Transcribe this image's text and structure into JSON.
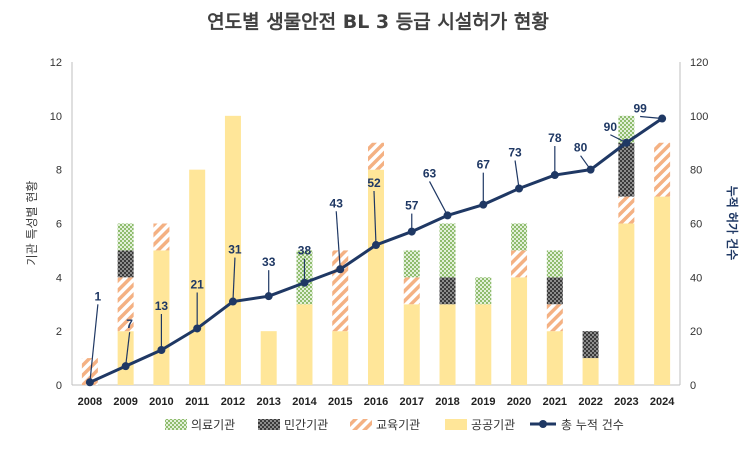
{
  "chart_data": {
    "type": "bar",
    "stacked": true,
    "title": "연도별 생물안전 BL 3 등급 시설허가 현황",
    "ylabel": "기관 특성별 현황",
    "y2label": "누적 허가 건수",
    "ylim": [
      0,
      12
    ],
    "y2lim": [
      0,
      120
    ],
    "yticks": [
      0,
      2,
      4,
      6,
      8,
      10,
      12
    ],
    "y2ticks": [
      0,
      20,
      40,
      60,
      80,
      100,
      120
    ],
    "categories": [
      "2008",
      "2009",
      "2010",
      "2011",
      "2012",
      "2013",
      "2014",
      "2015",
      "2016",
      "2017",
      "2018",
      "2019",
      "2020",
      "2021",
      "2022",
      "2023",
      "2024"
    ],
    "series": [
      {
        "name": "공공기관",
        "color": "#ffe699",
        "pattern": "solid",
        "values": [
          0,
          2,
          5,
          8,
          10,
          2,
          3,
          2,
          8,
          3,
          3,
          3,
          4,
          2,
          1,
          6,
          7
        ]
      },
      {
        "name": "교육기관",
        "color": "#f4b183",
        "pattern": "hatch",
        "values": [
          1,
          2,
          1,
          0,
          0,
          0,
          0,
          3,
          1,
          1,
          0,
          0,
          1,
          1,
          0,
          1,
          2
        ]
      },
      {
        "name": "민간기관",
        "color": "#595959",
        "pattern": "dots",
        "values": [
          0,
          1,
          0,
          0,
          0,
          0,
          0,
          0,
          0,
          0,
          1,
          0,
          0,
          1,
          1,
          2,
          0
        ]
      },
      {
        "name": "의료기관",
        "color": "#a9d18e",
        "pattern": "dots",
        "values": [
          0,
          1,
          0,
          0,
          0,
          0,
          2,
          0,
          0,
          1,
          2,
          1,
          1,
          1,
          0,
          1,
          0
        ]
      }
    ],
    "line": {
      "name": "총 누적 건수",
      "color": "#1f3864",
      "values": [
        1,
        7,
        13,
        21,
        31,
        33,
        38,
        43,
        52,
        57,
        63,
        67,
        73,
        78,
        80,
        90,
        99
      ]
    },
    "legend_order": [
      "의료기관",
      "민간기관",
      "교육기관",
      "공공기관",
      "총 누적 건수"
    ],
    "legend": "bottom",
    "grid": false
  }
}
